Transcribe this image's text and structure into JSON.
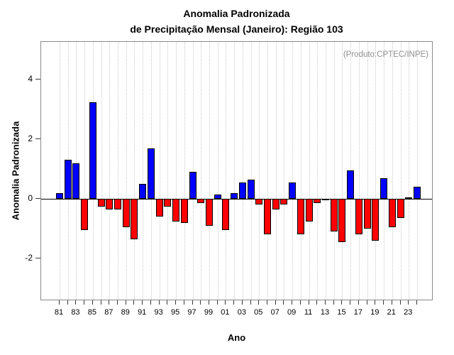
{
  "chart_data": {
    "type": "bar",
    "title_line1": "Anomalia Padronizada",
    "title_line2": "de Precipitação Mensal (Janeiro): Região 103",
    "ylabel": "Anomalia Padronizada",
    "xlabel": "Ano",
    "annotation": "(Produto:CPTEC/INPE)",
    "years": [
      1981,
      1982,
      1983,
      1984,
      1985,
      1986,
      1987,
      1988,
      1989,
      1990,
      1991,
      1992,
      1993,
      1994,
      1995,
      1996,
      1997,
      1998,
      1999,
      2000,
      2001,
      2002,
      2003,
      2004,
      2005,
      2006,
      2007,
      2008,
      2009,
      2010,
      2011,
      2012,
      2013,
      2014,
      2015,
      2016,
      2017,
      2018,
      2019,
      2020,
      2021,
      2022,
      2023,
      2024
    ],
    "values": [
      0.2,
      1.3,
      1.2,
      -1.05,
      3.25,
      -0.25,
      -0.35,
      -0.35,
      -0.95,
      -1.35,
      0.5,
      1.7,
      -0.6,
      -0.25,
      -0.75,
      -0.8,
      0.9,
      -0.15,
      -0.9,
      0.15,
      -1.05,
      0.2,
      0.55,
      0.65,
      -0.2,
      -1.2,
      -0.35,
      -0.2,
      0.55,
      -1.2,
      -0.75,
      -0.15,
      -0.05,
      -1.1,
      -1.45,
      0.95,
      -1.2,
      -1.0,
      -1.4,
      0.7,
      -0.95,
      -0.65,
      0.05,
      0.4
    ],
    "x_tick_labels": [
      "81",
      "83",
      "85",
      "87",
      "89",
      "91",
      "93",
      "95",
      "97",
      "99",
      "01",
      "03",
      "05",
      "07",
      "09",
      "11",
      "13",
      "15",
      "17",
      "19",
      "21",
      "23"
    ],
    "yticks": [
      -2,
      0,
      2,
      4
    ],
    "ylim": [
      -3.45,
      5.25
    ],
    "grid": "vertical-dotted-per-year",
    "legend_position": "none",
    "positive_color": "#0000ff",
    "negative_color": "#ff0000",
    "annotation_color": "#909090",
    "box_color": "#8a8a8a"
  }
}
